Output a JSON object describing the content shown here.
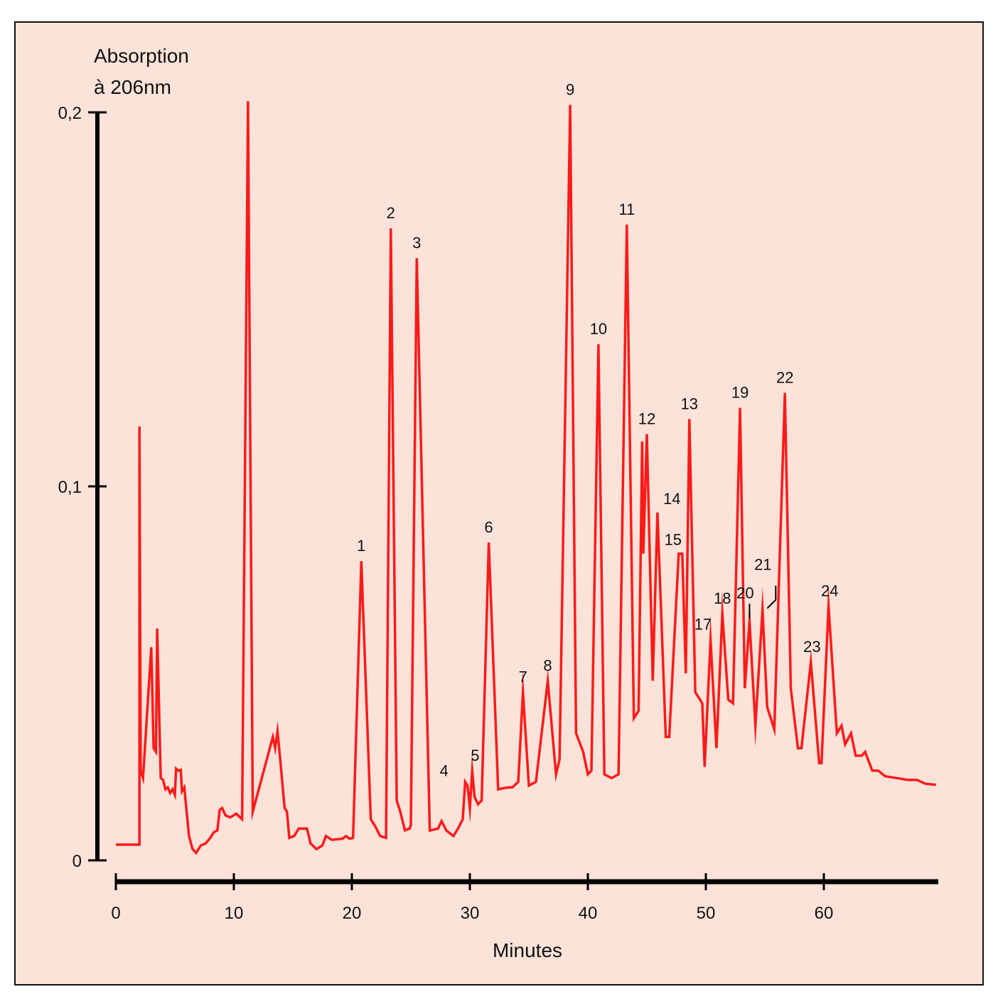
{
  "chart_data": {
    "type": "line",
    "title": "",
    "ylabel_lines": [
      "Absorption",
      "à 206nm"
    ],
    "xlabel": "Minutes",
    "xlim": [
      0,
      70
    ],
    "ylim": [
      0,
      0.2
    ],
    "x_ticks": [
      0,
      10,
      20,
      30,
      40,
      50,
      60
    ],
    "x_tick_labels": [
      "0",
      "10",
      "20",
      "30",
      "40",
      "50",
      "60"
    ],
    "y_ticks": [
      0,
      0.1,
      0.2
    ],
    "y_tick_labels": [
      "0",
      "0,1",
      "0,2"
    ],
    "grid": false,
    "line_color": "#ff1a1a",
    "background_color": "#fce3d9",
    "series": [
      {
        "name": "Absorption à 206nm",
        "points": [
          [
            0.0,
            0.0042
          ],
          [
            2.0,
            0.0042
          ],
          [
            2.0,
            0.116
          ],
          [
            2.1,
            0.024
          ],
          [
            2.3,
            0.022
          ],
          [
            3.0,
            0.057
          ],
          [
            3.2,
            0.03
          ],
          [
            3.4,
            0.029
          ],
          [
            3.5,
            0.062
          ],
          [
            3.8,
            0.022
          ],
          [
            4.0,
            0.0215
          ],
          [
            4.2,
            0.019
          ],
          [
            4.4,
            0.0195
          ],
          [
            4.6,
            0.018
          ],
          [
            4.8,
            0.019
          ],
          [
            5.0,
            0.0175
          ],
          [
            5.1,
            0.0245
          ],
          [
            5.3,
            0.024
          ],
          [
            5.5,
            0.0242
          ],
          [
            5.6,
            0.0185
          ],
          [
            5.8,
            0.0195
          ],
          [
            6.2,
            0.0065
          ],
          [
            6.5,
            0.003
          ],
          [
            6.8,
            0.002
          ],
          [
            7.2,
            0.004
          ],
          [
            7.6,
            0.0045
          ],
          [
            8.0,
            0.006
          ],
          [
            8.3,
            0.0075
          ],
          [
            8.6,
            0.008
          ],
          [
            8.8,
            0.0135
          ],
          [
            9.0,
            0.014
          ],
          [
            9.3,
            0.012
          ],
          [
            9.7,
            0.0115
          ],
          [
            10.2,
            0.0125
          ],
          [
            10.7,
            0.011
          ],
          [
            11.2,
            0.203
          ],
          [
            11.6,
            0.013
          ],
          [
            13.3,
            0.033
          ],
          [
            13.5,
            0.03
          ],
          [
            13.7,
            0.0345
          ],
          [
            13.9,
            0.028
          ],
          [
            14.3,
            0.014
          ],
          [
            14.5,
            0.013
          ],
          [
            14.7,
            0.006
          ],
          [
            15.1,
            0.0065
          ],
          [
            15.5,
            0.0085
          ],
          [
            16.2,
            0.0085
          ],
          [
            16.5,
            0.0045
          ],
          [
            17.0,
            0.003
          ],
          [
            17.5,
            0.004
          ],
          [
            17.8,
            0.0065
          ],
          [
            18.3,
            0.0055
          ],
          [
            19.2,
            0.0058
          ],
          [
            19.5,
            0.0065
          ],
          [
            19.8,
            0.0058
          ],
          [
            20.1,
            0.006
          ],
          [
            20.8,
            0.08
          ],
          [
            21.6,
            0.011
          ],
          [
            22.0,
            0.009
          ],
          [
            22.4,
            0.0065
          ],
          [
            22.9,
            0.006
          ],
          [
            23.3,
            0.169
          ],
          [
            23.8,
            0.016
          ],
          [
            24.1,
            0.013
          ],
          [
            24.5,
            0.008
          ],
          [
            24.9,
            0.0085
          ],
          [
            25.0,
            0.0095
          ],
          [
            25.5,
            0.161
          ],
          [
            26.6,
            0.008
          ],
          [
            27.3,
            0.0085
          ],
          [
            27.6,
            0.0105
          ],
          [
            28.0,
            0.008
          ],
          [
            28.6,
            0.0065
          ],
          [
            29.0,
            0.0085
          ],
          [
            29.4,
            0.011
          ],
          [
            29.6,
            0.021
          ],
          [
            29.8,
            0.02
          ],
          [
            30.0,
            0.014
          ],
          [
            30.2,
            0.024
          ],
          [
            30.4,
            0.017
          ],
          [
            30.7,
            0.015
          ],
          [
            31.0,
            0.016
          ],
          [
            31.6,
            0.085
          ],
          [
            32.4,
            0.019
          ],
          [
            33.2,
            0.0195
          ],
          [
            33.6,
            0.0195
          ],
          [
            34.1,
            0.021
          ],
          [
            34.5,
            0.045
          ],
          [
            35.0,
            0.02
          ],
          [
            35.6,
            0.021
          ],
          [
            36.6,
            0.048
          ],
          [
            37.3,
            0.023
          ],
          [
            37.6,
            0.027
          ],
          [
            38.5,
            0.202
          ],
          [
            39.0,
            0.034
          ],
          [
            39.6,
            0.029
          ],
          [
            40.0,
            0.023
          ],
          [
            40.3,
            0.024
          ],
          [
            40.9,
            0.138
          ],
          [
            41.4,
            0.023
          ],
          [
            42.0,
            0.022
          ],
          [
            42.6,
            0.023
          ],
          [
            43.3,
            0.17
          ],
          [
            43.9,
            0.038
          ],
          [
            44.3,
            0.04
          ],
          [
            44.6,
            0.112
          ],
          [
            44.7,
            0.082
          ],
          [
            45.0,
            0.114
          ],
          [
            45.5,
            0.048
          ],
          [
            45.9,
            0.093
          ],
          [
            46.6,
            0.033
          ],
          [
            46.9,
            0.033
          ],
          [
            47.7,
            0.082
          ],
          [
            48.0,
            0.082
          ],
          [
            48.3,
            0.05
          ],
          [
            48.6,
            0.118
          ],
          [
            49.1,
            0.045
          ],
          [
            49.7,
            0.042
          ],
          [
            49.9,
            0.025
          ],
          [
            50.4,
            0.059
          ],
          [
            50.9,
            0.03
          ],
          [
            51.4,
            0.066
          ],
          [
            51.9,
            0.043
          ],
          [
            52.3,
            0.042
          ],
          [
            52.9,
            0.121
          ],
          [
            53.3,
            0.046
          ],
          [
            53.7,
            0.064
          ],
          [
            54.2,
            0.036
          ],
          [
            54.8,
            0.067
          ],
          [
            55.2,
            0.041
          ],
          [
            55.8,
            0.035
          ],
          [
            56.7,
            0.125
          ],
          [
            57.2,
            0.046
          ],
          [
            57.8,
            0.03
          ],
          [
            58.1,
            0.03
          ],
          [
            58.9,
            0.053
          ],
          [
            59.6,
            0.026
          ],
          [
            59.8,
            0.026
          ],
          [
            60.4,
            0.068
          ],
          [
            61.1,
            0.034
          ],
          [
            61.5,
            0.036
          ],
          [
            61.8,
            0.031
          ],
          [
            62.3,
            0.034
          ],
          [
            62.7,
            0.028
          ],
          [
            63.2,
            0.028
          ],
          [
            63.5,
            0.029
          ],
          [
            64.1,
            0.024
          ],
          [
            64.6,
            0.024
          ],
          [
            65.2,
            0.0225
          ],
          [
            66.2,
            0.022
          ],
          [
            67.1,
            0.0215
          ],
          [
            67.9,
            0.0215
          ],
          [
            68.6,
            0.0205
          ],
          [
            69.5,
            0.0202
          ]
        ]
      }
    ],
    "peak_labels": [
      {
        "label": "1",
        "x": 20.8,
        "y": 0.08
      },
      {
        "label": "2",
        "x": 23.3,
        "y": 0.169
      },
      {
        "label": "3",
        "x": 25.5,
        "y": 0.161
      },
      {
        "label": "4",
        "x": 28.9,
        "y": 0.021
      },
      {
        "label": "5",
        "x": 30.2,
        "y": 0.024
      },
      {
        "label": "6",
        "x": 31.6,
        "y": 0.085
      },
      {
        "label": "7",
        "x": 34.5,
        "y": 0.045
      },
      {
        "label": "8",
        "x": 36.6,
        "y": 0.048
      },
      {
        "label": "9",
        "x": 38.5,
        "y": 0.202
      },
      {
        "label": "10",
        "x": 40.9,
        "y": 0.138
      },
      {
        "label": "11",
        "x": 43.3,
        "y": 0.17
      },
      {
        "label": "12",
        "x": 45.0,
        "y": 0.114
      },
      {
        "label": "13",
        "x": 48.6,
        "y": 0.118
      },
      {
        "label": "14",
        "x": 46.4,
        "y": 0.093
      },
      {
        "label": "15",
        "x": 47.7,
        "y": 0.082
      },
      {
        "label": "17",
        "x": 50.0,
        "y": 0.059
      },
      {
        "label": "18",
        "x": 51.4,
        "y": 0.066
      },
      {
        "label": "19",
        "x": 52.9,
        "y": 0.121
      },
      {
        "label": "20",
        "x": 53.7,
        "y": 0.064
      },
      {
        "label": "21",
        "x": 55.2,
        "y": 0.067
      },
      {
        "label": "22",
        "x": 56.7,
        "y": 0.125
      },
      {
        "label": "23",
        "x": 59.0,
        "y": 0.053
      },
      {
        "label": "24",
        "x": 60.5,
        "y": 0.068
      }
    ]
  }
}
